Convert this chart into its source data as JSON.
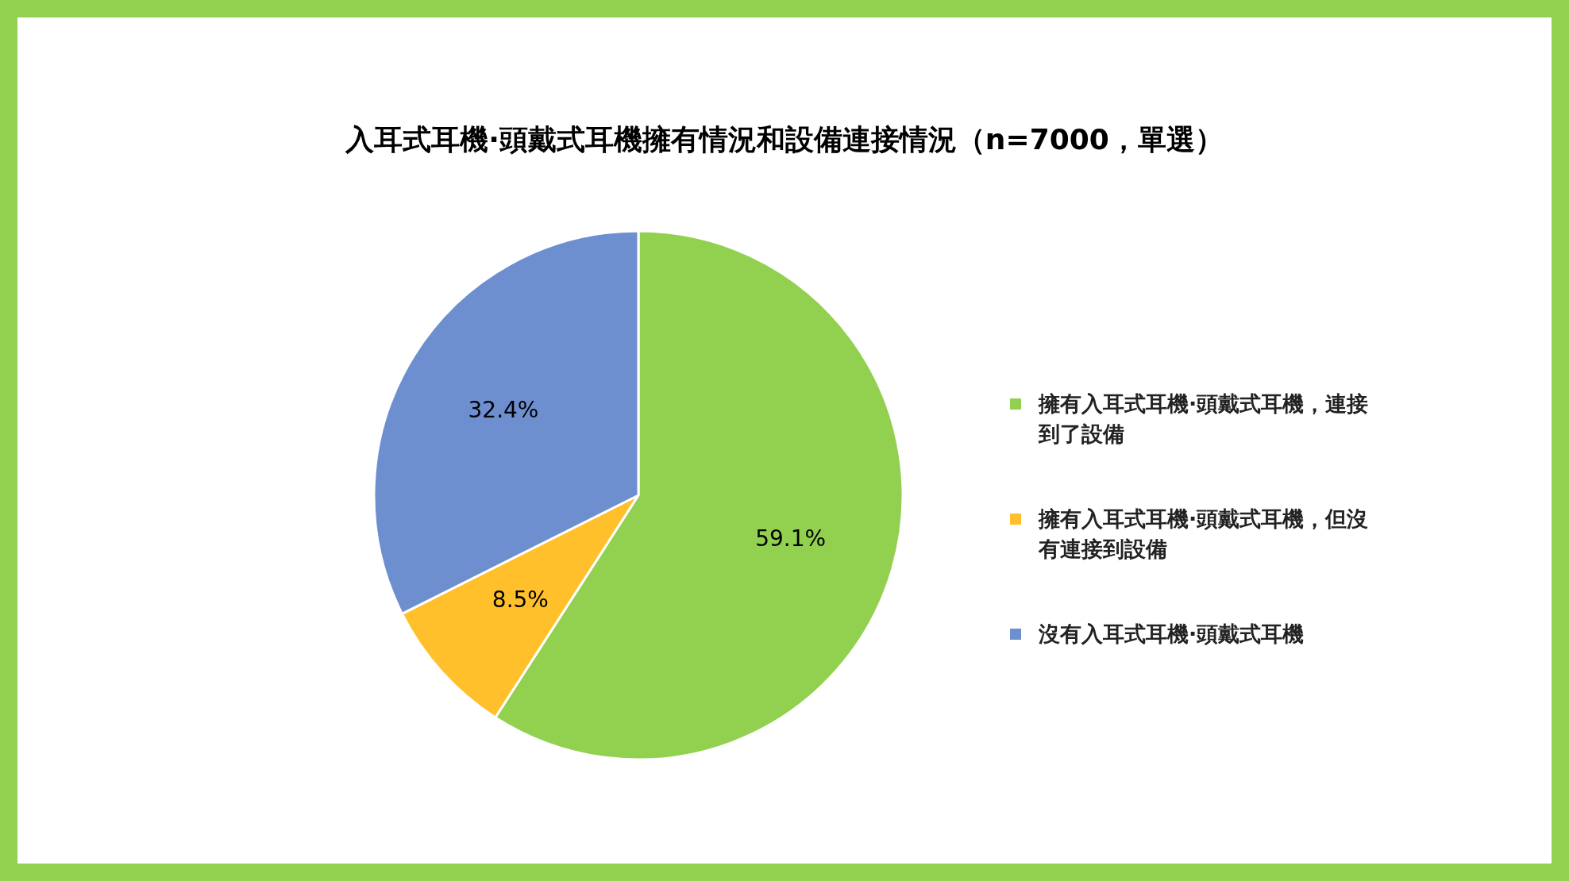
{
  "chart_data": {
    "type": "pie",
    "title": "入耳式耳機·頭戴式耳機擁有情況和設備連接情況（n=7000，單選）",
    "categories": [
      "擁有入耳式耳機·頭戴式耳機，連接到了設備",
      "擁有入耳式耳機·頭戴式耳機，但沒有連接到設備",
      "沒有入耳式耳機·頭戴式耳機"
    ],
    "values": [
      59.1,
      8.5,
      32.4
    ],
    "colors": [
      "#92d050",
      "#ffc02b",
      "#6e8fcf"
    ],
    "value_labels": [
      "59.1%",
      "8.5%",
      "32.4%"
    ],
    "legend": "right"
  }
}
